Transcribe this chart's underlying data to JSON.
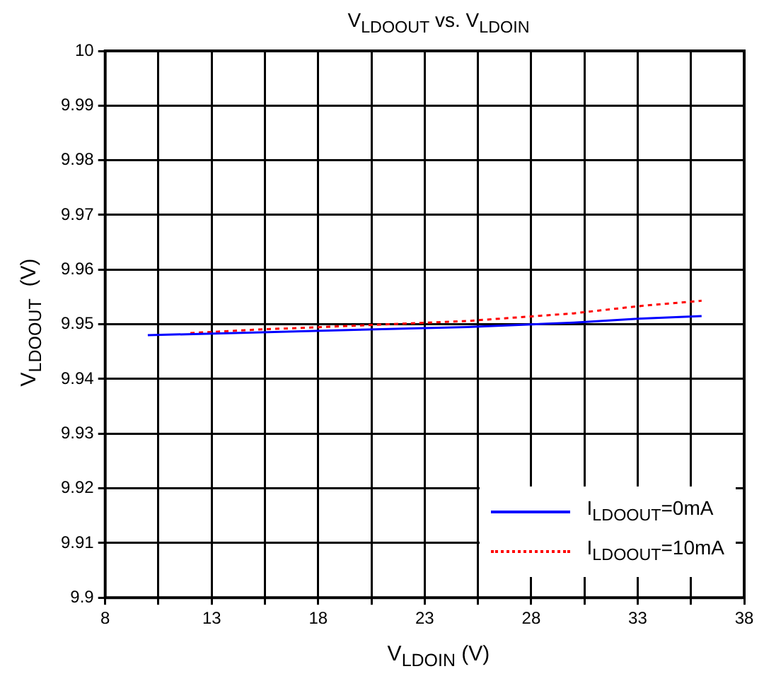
{
  "chart_data": {
    "type": "line",
    "title": "V$_{LDOOUT}$ vs. V$_{LDOIN}$",
    "xlabel": "V$_{LDOIN}$ (V)",
    "ylabel": "V$_{LDOOUT}$  (V)",
    "xlim": [
      8,
      38
    ],
    "xticks": [
      8,
      {
        "value": 10.5,
        "label": null
      },
      13,
      {
        "value": 15.5,
        "label": null
      },
      18,
      {
        "value": 20.5,
        "label": null
      },
      23,
      {
        "value": 25.5,
        "label": null
      },
      28,
      {
        "value": 30.5,
        "label": null
      },
      33,
      {
        "value": 35.5,
        "label": null
      },
      38
    ],
    "ylim": [
      9.9,
      10
    ],
    "yticks": [
      9.9,
      9.91,
      9.92,
      9.93,
      9.94,
      9.95,
      9.96,
      9.97,
      9.98,
      9.99,
      10
    ],
    "grid": true,
    "legend": "bottom right",
    "marker": "none",
    "series": [
      {
        "name": "I$_{LDOOUT}$=0mA",
        "color": "#0000ff",
        "line_style": "solid",
        "x": [
          10,
          15,
          20,
          25,
          30,
          33,
          36
        ],
        "values": [
          9.948,
          9.9485,
          9.949,
          9.9495,
          9.9503,
          9.951,
          9.9515
        ]
      },
      {
        "name": "I$_{LDOOUT}$=10mA",
        "color": "#ff0000",
        "line_style": "dotted",
        "x": [
          12,
          15,
          20,
          25,
          30,
          33,
          36
        ],
        "values": [
          9.9484,
          9.949,
          9.9498,
          9.9506,
          9.952,
          9.9533,
          9.9543
        ]
      }
    ]
  }
}
